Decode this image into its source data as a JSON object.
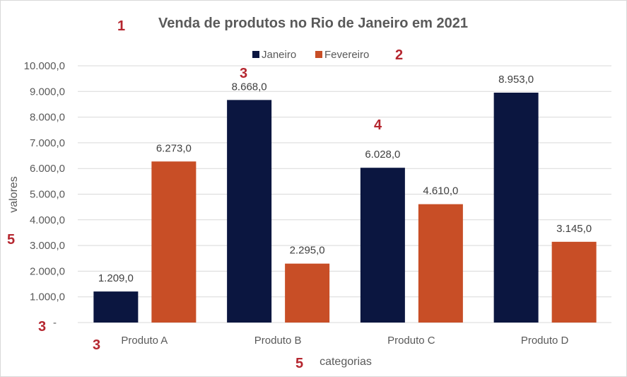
{
  "chart_data": {
    "type": "bar",
    "title": "Venda de produtos no Rio de Janeiro em 2021",
    "xlabel": "categorias",
    "ylabel": "valores",
    "categories": [
      "Produto A",
      "Produto B",
      "Produto C",
      "Produto D"
    ],
    "series": [
      {
        "name": "Janeiro",
        "color": "#0b1640",
        "values": [
          1209,
          8668,
          6028,
          8953
        ],
        "labels": [
          "1.209,0",
          "8.668,0",
          "6.028,0",
          "8.953,0"
        ]
      },
      {
        "name": "Fevereiro",
        "color": "#c84e26",
        "values": [
          6273,
          2295,
          4610,
          3145
        ],
        "labels": [
          "6.273,0",
          "2.295,0",
          "4.610,0",
          "3.145,0"
        ]
      }
    ],
    "ylim": [
      0,
      10000
    ],
    "yticks": [
      0,
      1000,
      2000,
      3000,
      4000,
      5000,
      6000,
      7000,
      8000,
      9000,
      10000
    ],
    "ytick_labels": [
      "-",
      "1.000,0",
      "2.000,0",
      "3.000,0",
      "4.000,0",
      "5.000,0",
      "6.000,0",
      "7.000,0",
      "8.000,0",
      "9.000,0",
      "10.000,0"
    ],
    "grid": true,
    "legend": "top"
  },
  "annotations": {
    "a1": "1",
    "a2": "2",
    "a3_top": "3",
    "a4": "4",
    "a5_left": "5",
    "a3_zero": "3",
    "a3_cat": "3",
    "a5_bottom": "5",
    "color": "#b5262f"
  }
}
